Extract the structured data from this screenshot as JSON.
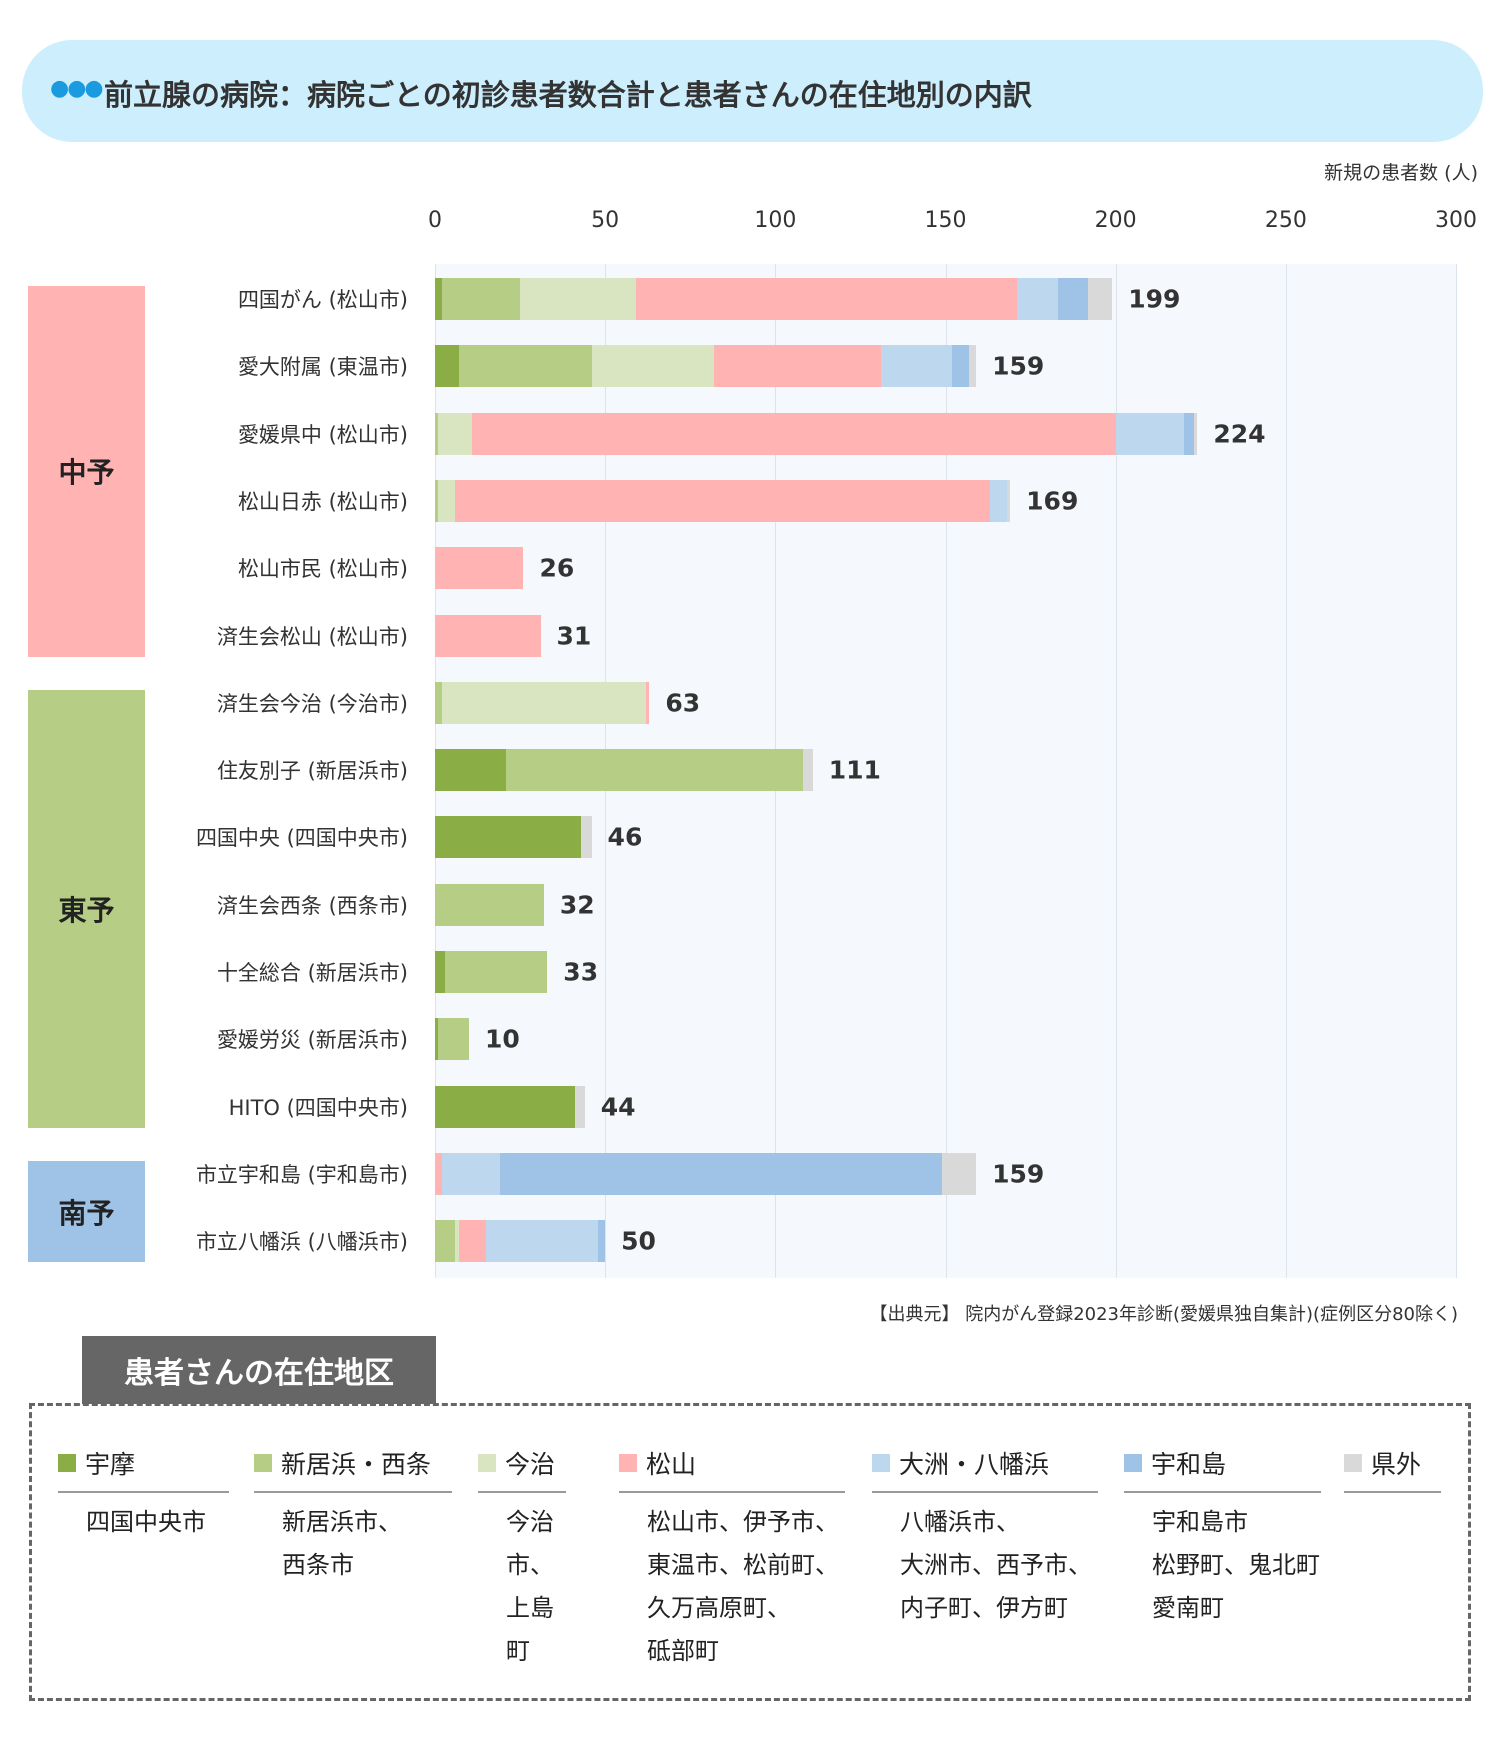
{
  "header": {
    "icon": "dots-icon",
    "title": "前立腺の病院：病院ごとの初診患者数合計と患者さんの在住地別の内訳"
  },
  "source": "【出典元】 院内がん登録2023年診断(愛媛県独自集計)(症例区分80除く)",
  "legend_title": "患者さんの在住地区",
  "regions": [
    {
      "label": "中予",
      "color": "#ffb3b3",
      "rows": [
        0,
        5
      ]
    },
    {
      "label": "東予",
      "color": "#b5cd84",
      "rows": [
        6,
        12
      ]
    },
    {
      "label": "南予",
      "color": "#9fc3e6",
      "rows": [
        13,
        14
      ]
    }
  ],
  "legend": [
    {
      "label": "宇摩",
      "color": "#8aad45",
      "items": [
        "四国中央市"
      ]
    },
    {
      "label": "新居浜・西条",
      "color": "#b5cd84",
      "items": [
        "新居浜市、",
        "西条市"
      ]
    },
    {
      "label": "今治",
      "color": "#d9e5c1",
      "items": [
        "今治市、",
        "上島町"
      ]
    },
    {
      "label": "松山",
      "color": "#ffb3b3",
      "items": [
        "松山市、伊予市、",
        "東温市、松前町、",
        "久万高原町、",
        "砥部町"
      ]
    },
    {
      "label": "大洲・八幡浜",
      "color": "#bdd7ee",
      "items": [
        "八幡浜市、",
        "大洲市、西予市、",
        "内子町、伊方町"
      ]
    },
    {
      "label": "宇和島",
      "color": "#9fc3e6",
      "items": [
        "宇和島市",
        "松野町、鬼北町",
        "愛南町"
      ]
    },
    {
      "label": "県外",
      "color": "#d9d9d9",
      "items": []
    }
  ],
  "chart_data": {
    "type": "bar",
    "orientation": "horizontal",
    "stacked": true,
    "xlabel": "新規の患者数 (人)",
    "xlim": [
      0,
      300
    ],
    "xticks": [
      "0",
      "50",
      "100",
      "150",
      "200",
      "250",
      "300"
    ],
    "grid": true,
    "series_names": [
      "宇摩",
      "新居浜・西条",
      "今治",
      "松山",
      "大洲・八幡浜",
      "宇和島",
      "県外"
    ],
    "categories": [
      "四国がん (松山市)",
      "愛大附属 (東温市)",
      "愛媛県中 (松山市)",
      "松山日赤 (松山市)",
      "松山市民 (松山市)",
      "済生会松山 (松山市)",
      "済生会今治 (今治市)",
      "住友別子 (新居浜市)",
      "四国中央 (四国中央市)",
      "済生会西条 (西条市)",
      "十全総合 (新居浜市)",
      "愛媛労災 (新居浜市)",
      "HITO (四国中央市)",
      "市立宇和島 (宇和島市)",
      "市立八幡浜 (八幡浜市)"
    ],
    "values": [
      [
        2,
        23,
        34,
        112,
        12,
        9,
        7
      ],
      [
        7,
        39,
        36,
        49,
        21,
        5,
        2
      ],
      [
        0,
        1,
        10,
        189,
        20,
        3,
        1
      ],
      [
        0,
        1,
        5,
        157,
        5,
        0,
        1
      ],
      [
        0,
        0,
        0,
        26,
        0,
        0,
        0
      ],
      [
        0,
        0,
        0,
        31,
        0,
        0,
        0
      ],
      [
        0,
        2,
        60,
        1,
        0,
        0,
        0
      ],
      [
        21,
        87,
        0,
        0,
        0,
        0,
        3
      ],
      [
        43,
        0,
        0,
        0,
        0,
        0,
        3
      ],
      [
        0,
        32,
        0,
        0,
        0,
        0,
        0
      ],
      [
        3,
        30,
        0,
        0,
        0,
        0,
        0
      ],
      [
        1,
        9,
        0,
        0,
        0,
        0,
        0
      ],
      [
        41,
        0,
        0,
        0,
        0,
        0,
        3
      ],
      [
        0,
        0,
        0,
        2,
        17,
        130,
        10
      ],
      [
        0,
        6,
        1,
        8,
        33,
        2,
        0
      ]
    ],
    "totals": [
      "199",
      "159",
      "224",
      "169",
      "26",
      "31",
      "63",
      "111",
      "46",
      "32",
      "33",
      "10",
      "44",
      "159",
      "50"
    ]
  }
}
